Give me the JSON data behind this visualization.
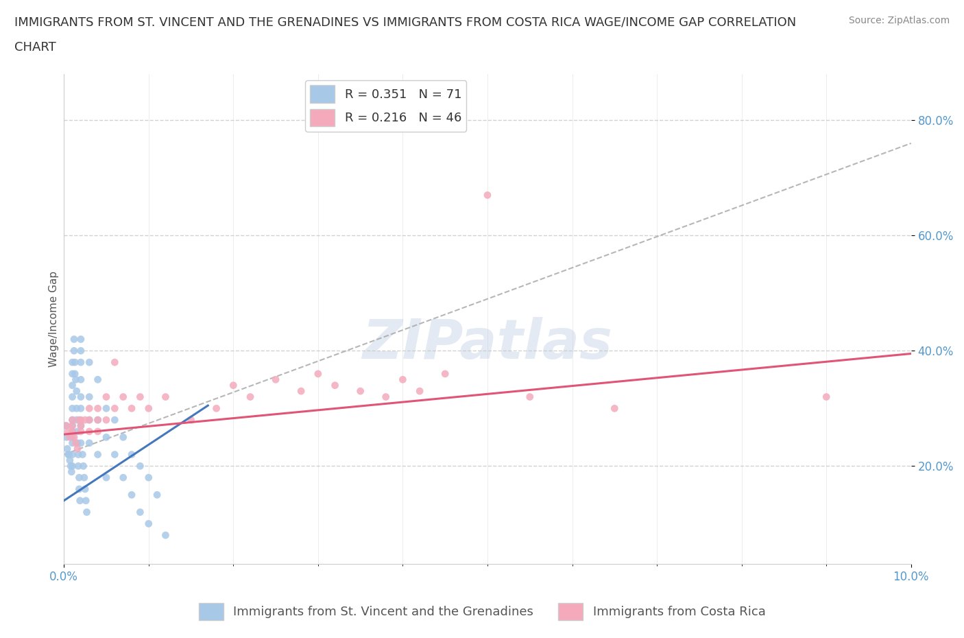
{
  "title_line1": "IMMIGRANTS FROM ST. VINCENT AND THE GRENADINES VS IMMIGRANTS FROM COSTA RICA WAGE/INCOME GAP CORRELATION",
  "title_line2": "CHART",
  "source_text": "Source: ZipAtlas.com",
  "ylabel": "Wage/Income Gap",
  "xlim": [
    0.0,
    0.1
  ],
  "ylim": [
    0.03,
    0.88
  ],
  "yticks": [
    0.2,
    0.4,
    0.6,
    0.8
  ],
  "ytick_labels": [
    "20.0%",
    "40.0%",
    "60.0%",
    "80.0%"
  ],
  "xticks": [
    0.0,
    0.1
  ],
  "xtick_labels": [
    "0.0%",
    "10.0%"
  ],
  "grid_color": "#cccccc",
  "background_color": "#ffffff",
  "series": [
    {
      "name": "Immigrants from St. Vincent and the Grenadines",
      "color": "#a8c8e8",
      "R": 0.351,
      "N": 71,
      "trend_color": "#4477bb",
      "x": [
        0.0002,
        0.0003,
        0.0004,
        0.0005,
        0.0006,
        0.0007,
        0.0008,
        0.0009,
        0.001,
        0.001,
        0.001,
        0.001,
        0.001,
        0.001,
        0.001,
        0.001,
        0.001,
        0.001,
        0.001,
        0.001,
        0.0012,
        0.0012,
        0.0013,
        0.0013,
        0.0014,
        0.0015,
        0.0015,
        0.0015,
        0.0016,
        0.0016,
        0.0017,
        0.0017,
        0.0018,
        0.0018,
        0.0019,
        0.002,
        0.002,
        0.002,
        0.002,
        0.002,
        0.002,
        0.002,
        0.002,
        0.0022,
        0.0023,
        0.0024,
        0.0025,
        0.0026,
        0.0027,
        0.003,
        0.003,
        0.003,
        0.003,
        0.004,
        0.004,
        0.004,
        0.005,
        0.005,
        0.005,
        0.006,
        0.006,
        0.007,
        0.007,
        0.008,
        0.008,
        0.009,
        0.009,
        0.01,
        0.01,
        0.011,
        0.012
      ],
      "y": [
        0.27,
        0.25,
        0.23,
        0.22,
        0.22,
        0.21,
        0.2,
        0.19,
        0.38,
        0.36,
        0.34,
        0.32,
        0.3,
        0.28,
        0.27,
        0.26,
        0.25,
        0.24,
        0.22,
        0.2,
        0.42,
        0.4,
        0.38,
        0.36,
        0.35,
        0.33,
        0.3,
        0.28,
        0.26,
        0.24,
        0.22,
        0.2,
        0.18,
        0.16,
        0.14,
        0.42,
        0.4,
        0.38,
        0.35,
        0.32,
        0.3,
        0.27,
        0.24,
        0.22,
        0.2,
        0.18,
        0.16,
        0.14,
        0.12,
        0.38,
        0.32,
        0.28,
        0.24,
        0.35,
        0.28,
        0.22,
        0.3,
        0.25,
        0.18,
        0.28,
        0.22,
        0.25,
        0.18,
        0.22,
        0.15,
        0.2,
        0.12,
        0.18,
        0.1,
        0.15,
        0.08
      ]
    },
    {
      "name": "Immigrants from Costa Rica",
      "color": "#f4aabb",
      "R": 0.216,
      "N": 46,
      "trend_color": "#e05575",
      "x": [
        0.0003,
        0.0005,
        0.0007,
        0.001,
        0.001,
        0.001,
        0.0012,
        0.0014,
        0.0016,
        0.0018,
        0.002,
        0.002,
        0.002,
        0.0025,
        0.003,
        0.003,
        0.003,
        0.004,
        0.004,
        0.004,
        0.005,
        0.005,
        0.006,
        0.006,
        0.007,
        0.008,
        0.009,
        0.01,
        0.012,
        0.015,
        0.018,
        0.02,
        0.022,
        0.025,
        0.028,
        0.03,
        0.032,
        0.035,
        0.038,
        0.04,
        0.042,
        0.045,
        0.05,
        0.055,
        0.065,
        0.09
      ],
      "y": [
        0.27,
        0.26,
        0.25,
        0.28,
        0.27,
        0.26,
        0.25,
        0.24,
        0.23,
        0.28,
        0.28,
        0.27,
        0.26,
        0.28,
        0.3,
        0.28,
        0.26,
        0.3,
        0.28,
        0.26,
        0.32,
        0.28,
        0.38,
        0.3,
        0.32,
        0.3,
        0.32,
        0.3,
        0.32,
        0.28,
        0.3,
        0.34,
        0.32,
        0.35,
        0.33,
        0.36,
        0.34,
        0.33,
        0.32,
        0.35,
        0.33,
        0.36,
        0.67,
        0.32,
        0.3,
        0.32
      ]
    }
  ],
  "dashed_trend_x": [
    0.0,
    0.1
  ],
  "dashed_trend_y": [
    0.22,
    0.76
  ],
  "title_fontsize": 13,
  "axis_label_fontsize": 11,
  "tick_fontsize": 12,
  "legend_fontsize": 13,
  "source_fontsize": 10,
  "marker_size": 60
}
